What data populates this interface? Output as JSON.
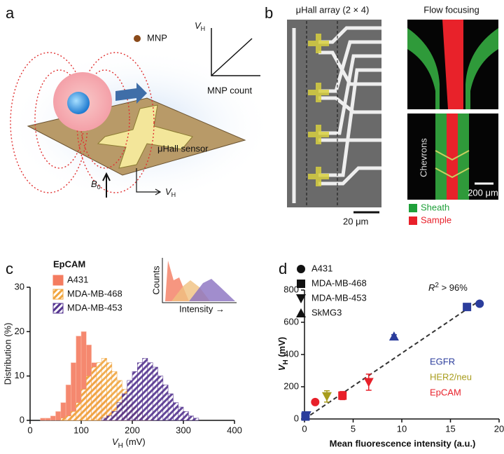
{
  "panel_a": {
    "letter": "a",
    "mnp": "MNP",
    "vh_axis": [
      "V",
      "H"
    ],
    "mnp_count": "MNP count",
    "sensor": "μHall sensor",
    "b0": [
      "B",
      "0"
    ],
    "vh_out": [
      "V",
      "H"
    ]
  },
  "panel_b": {
    "letter": "b",
    "array_title": "μHall array (2 × 4)",
    "array_scale": "20 μm",
    "flow_title": "Flow focusing",
    "chevrons": "Chevrons",
    "flow_scale": "200 μm",
    "legend": [
      {
        "name": "Sheath",
        "color": "#1fa03a"
      },
      {
        "name": "Sample",
        "color": "#e8202a"
      }
    ]
  },
  "chart_data": [
    {
      "type": "histogram",
      "letter": "c",
      "legend_title": "EpCAM",
      "legend": "upper left",
      "x_label": [
        "V",
        "H",
        " (mV)"
      ],
      "y_label": "Distribution (%)",
      "bins": [
        20,
        30,
        40,
        50,
        60,
        70,
        80,
        90,
        100,
        110,
        120,
        130,
        140,
        150,
        160,
        170,
        180,
        190,
        200,
        210,
        220,
        230,
        240,
        250,
        260,
        270,
        280,
        290,
        300,
        310,
        320,
        330,
        340
      ],
      "series": [
        {
          "name": "A431",
          "color": "#f47c60",
          "hatch": false,
          "values": [
            0.5,
            0.5,
            1,
            2,
            4,
            8,
            13,
            19,
            20,
            17,
            13,
            9,
            6,
            4,
            3,
            2,
            1,
            0.5,
            0,
            0,
            0,
            0,
            0,
            0,
            0,
            0,
            0,
            0,
            0,
            0,
            0,
            0
          ]
        },
        {
          "name": "MDA-MB-468",
          "color": "#f0a640",
          "hatch": true,
          "values": [
            0,
            0,
            0,
            0,
            0.5,
            1,
            2,
            4,
            7,
            10,
            12,
            13,
            14,
            13,
            11,
            9,
            7,
            5,
            3,
            2,
            1,
            0.5,
            0,
            0,
            0,
            0,
            0,
            0,
            0,
            0,
            0,
            0
          ]
        },
        {
          "name": "MDA-MB-453",
          "color": "#553590",
          "hatch": true,
          "values": [
            0,
            0,
            0,
            0,
            0,
            0,
            0,
            0,
            0,
            0,
            0,
            0,
            0.5,
            1,
            2,
            4,
            6,
            9,
            11,
            13,
            14,
            13,
            12,
            10,
            8,
            6,
            4,
            3,
            2,
            1,
            0.5,
            0
          ]
        }
      ],
      "xlim": [
        0,
        400
      ],
      "xticks": [
        0,
        100,
        200,
        300,
        400
      ],
      "ylim": [
        0,
        30
      ],
      "yticks": [
        0,
        10,
        20,
        30
      ],
      "inset": {
        "y_label": "Counts",
        "x_label": "Intensity →"
      }
    },
    {
      "type": "scatter",
      "letter": "d",
      "legend": "upper left",
      "x_label": "Mean fluorescence intensity (a.u.)",
      "y_label": [
        "V",
        "H",
        " (mV)"
      ],
      "series": [
        {
          "name": "A431",
          "marker": "circle",
          "x": [
            18.0,
            1.1
          ],
          "values": [
            715,
            105
          ],
          "errors": [
            12,
            12
          ],
          "colors": [
            "#2b3d9c",
            "#e8202a"
          ]
        },
        {
          "name": "MDA-MB-468",
          "marker": "square",
          "x": [
            16.7,
            3.9,
            0.1
          ],
          "values": [
            695,
            145,
            15
          ],
          "errors": [
            12,
            25,
            8
          ],
          "colors": [
            "#2b3d9c",
            "#e8202a",
            "#2b3d9c"
          ]
        },
        {
          "name": "MDA-MB-453",
          "marker": "triangle-down",
          "x": [
            2.3,
            6.6,
            0.2
          ],
          "values": [
            140,
            228,
            22
          ],
          "errors": [
            35,
            50,
            10
          ],
          "colors": [
            "#a89c1c",
            "#e8202a",
            "#2b3d9c"
          ]
        },
        {
          "name": "SkMG3",
          "marker": "triangle-up",
          "x": [
            9.2
          ],
          "values": [
            513
          ],
          "errors": [
            10
          ],
          "colors": [
            "#2b3d9c"
          ]
        }
      ],
      "color_legend": [
        {
          "name": "EGFR",
          "color": "#2b3d9c"
        },
        {
          "name": "HER2/neu",
          "color": "#a89c1c"
        },
        {
          "name": "EpCAM",
          "color": "#e8202a"
        }
      ],
      "fit": {
        "x": [
          0,
          18
        ],
        "y": [
          0,
          735
        ]
      },
      "annotation": [
        "R",
        "2",
        " > 96%"
      ],
      "xlim": [
        0,
        20
      ],
      "xticks": [
        0,
        5,
        10,
        15,
        20
      ],
      "ylim": [
        0,
        800
      ],
      "yticks": [
        0,
        200,
        400,
        600,
        800
      ]
    }
  ]
}
